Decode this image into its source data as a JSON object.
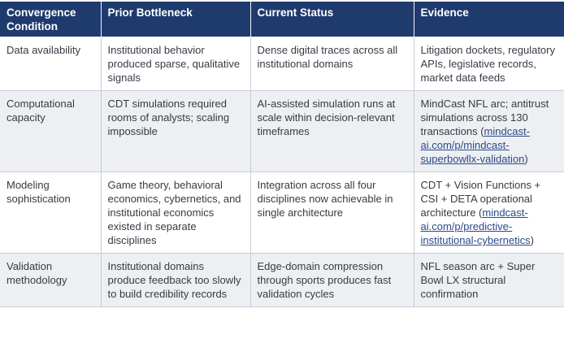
{
  "colors": {
    "header_bg": "#1f3a6d",
    "link_color": "#2b4a87",
    "row_alt_bg": "#edeff3",
    "border_color": "#c8cdd5",
    "text_color": "#363b43"
  },
  "table": {
    "columns": [
      {
        "label": "Convergence Condition"
      },
      {
        "label": "Prior Bottleneck"
      },
      {
        "label": "Current Status"
      },
      {
        "label": "Evidence"
      }
    ],
    "rows": [
      {
        "condition": "Data availability",
        "prior": "Institutional behavior produced sparse, qualitative signals",
        "current": "Dense digital traces across all institutional domains",
        "evidence": [
          {
            "t": "Litigation dockets, regulatory APIs, legislative records, market data feeds",
            "link": false
          }
        ]
      },
      {
        "condition": "Computational capacity",
        "prior": "CDT simulations required rooms of analysts; scaling impossible",
        "current": "AI-assisted simulation runs at scale within decision-relevant timeframes",
        "evidence": [
          {
            "t": "MindCast NFL arc; antitrust simulations across 130 transactions (",
            "link": false
          },
          {
            "t": "mindcast-ai.com/p/mindcast-superbowllx-validation",
            "link": true
          },
          {
            "t": ")",
            "link": false
          }
        ]
      },
      {
        "condition": "Modeling sophistication",
        "prior": "Game theory, behavioral economics, cybernetics, and institutional economics existed in separate disciplines",
        "current": "Integration across all four disciplines now achievable in single architecture",
        "evidence": [
          {
            "t": "CDT + Vision Functions + CSI + DETA operational architecture (",
            "link": false
          },
          {
            "t": "mindcast-ai.com/p/predictive-institutional-cybernetics",
            "link": true
          },
          {
            "t": ")",
            "link": false
          }
        ]
      },
      {
        "condition": "Validation methodology",
        "prior": "Institutional domains produce feedback too slowly to build credibility records",
        "current": "Edge-domain compression through sports produces fast validation cycles",
        "evidence": [
          {
            "t": "NFL season arc + Super Bowl LX structural confirmation",
            "link": false
          }
        ]
      }
    ]
  }
}
